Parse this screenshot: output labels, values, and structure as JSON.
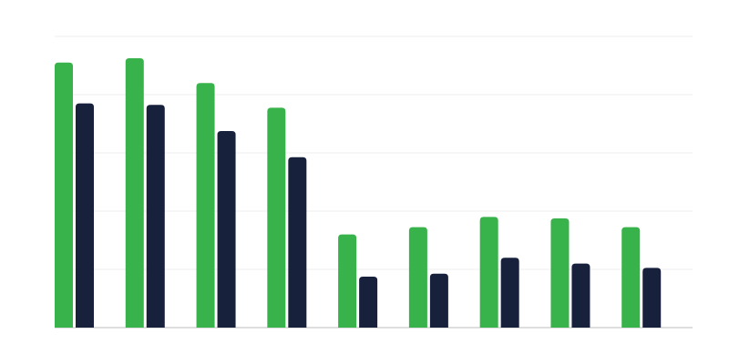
{
  "chart_data": {
    "type": "bar",
    "categories": [
      null,
      null,
      null,
      null,
      null,
      null,
      null,
      null,
      null
    ],
    "series": [
      {
        "color": "#38b24a",
        "values": [
          91,
          92.5,
          84,
          75.5,
          32,
          34.5,
          38,
          37.5,
          34.5
        ]
      },
      {
        "color": "#18213c",
        "values": [
          77,
          76.5,
          67.5,
          58.5,
          17.5,
          18.5,
          24,
          22,
          20.5
        ]
      }
    ],
    "ylim": [
      0,
      100
    ],
    "yticks": [
      0,
      20,
      40,
      60,
      80,
      100
    ],
    "grid": true
  }
}
